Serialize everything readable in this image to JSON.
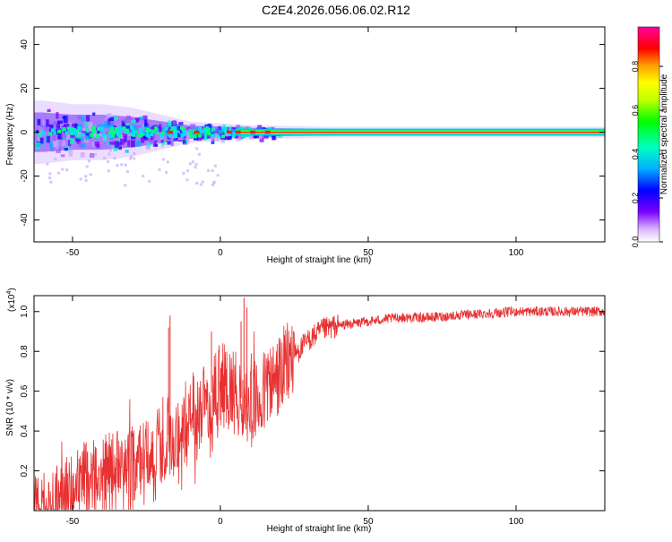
{
  "title": "C2E4.2026.056.06.02.R12",
  "chart_data": [
    {
      "type": "heatmap",
      "xlabel": "Height of straight line (km)",
      "ylabel": "Frequency (Hz)",
      "xlim": [
        -63,
        130
      ],
      "ylim": [
        -50,
        48
      ],
      "xticks": [
        -50,
        0,
        50,
        100
      ],
      "yticks": [
        -40,
        -20,
        0,
        20,
        40
      ],
      "ytick_labels": [
        "-40",
        "-20",
        "0",
        "20",
        "40"
      ],
      "xtick_labels": [
        "-50",
        "0",
        "50",
        "100"
      ],
      "center_line_hz": 0,
      "description_series": {
        "name": "Spectral power band (half-width Hz vs height)",
        "x": [
          -60,
          -50,
          -40,
          -30,
          -20,
          -10,
          0,
          10,
          20,
          40,
          60,
          80,
          100,
          130
        ],
        "halfwidth": [
          9,
          8,
          8,
          7,
          5,
          3,
          2.5,
          2,
          1.8,
          1.5,
          1.5,
          1.5,
          1.5,
          1.5
        ]
      },
      "colorbar": {
        "label": "Normalized spectral amplitude",
        "range": [
          0,
          0.98
        ],
        "ticks": [
          0.0,
          0.2,
          0.4,
          0.6,
          0.8
        ],
        "tick_labels": [
          "0.0",
          "0.2",
          "0.4",
          "0.6",
          "0.8"
        ],
        "colors": [
          "#ffffff",
          "#d8b4ff",
          "#7b00ff",
          "#0000ff",
          "#00b0ff",
          "#00ffc0",
          "#00ff00",
          "#c0ff00",
          "#ffff00",
          "#ffa000",
          "#ff0000",
          "#ff00a0"
        ]
      }
    },
    {
      "type": "line",
      "xlabel": "Height of straight line (km)",
      "ylabel": "SNR (10 * v/v)",
      "y_scale_label": "(x10",
      "y_scale_exp": "4",
      "y_scale_close": ")",
      "xlim": [
        -63,
        130
      ],
      "ylim": [
        0,
        1.08
      ],
      "xticks": [
        -50,
        0,
        50,
        100
      ],
      "xtick_labels": [
        "-50",
        "0",
        "50",
        "100"
      ],
      "yticks": [
        0.2,
        0.4,
        0.6,
        0.8,
        1.0
      ],
      "ytick_labels": [
        "0.2",
        "0.4",
        "0.6",
        "0.8",
        "1.0"
      ],
      "color": "#e83030",
      "series": [
        {
          "name": "SNR",
          "x": [
            -63,
            -55,
            -50,
            -45,
            -40,
            -35,
            -30,
            -25,
            -20,
            -15,
            -10,
            -5,
            0,
            5,
            8,
            10,
            15,
            20,
            25,
            30,
            35,
            40,
            50,
            60,
            70,
            80,
            90,
            100,
            110,
            120,
            130
          ],
          "y": [
            0.03,
            0.06,
            0.14,
            0.2,
            0.22,
            0.24,
            0.26,
            0.3,
            0.36,
            0.4,
            0.48,
            0.56,
            0.64,
            0.6,
            0.55,
            0.5,
            0.6,
            0.68,
            0.78,
            0.86,
            0.91,
            0.93,
            0.95,
            0.97,
            0.97,
            0.98,
            0.99,
            1.0,
            1.0,
            1.0,
            1.0
          ]
        }
      ]
    }
  ]
}
